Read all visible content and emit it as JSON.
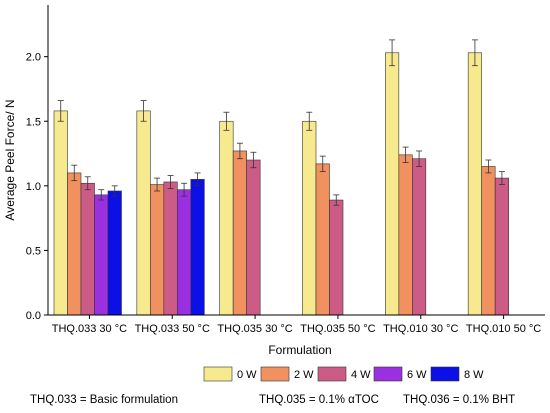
{
  "chart_data": {
    "type": "bar",
    "title": "",
    "xlabel": "Formulation",
    "ylabel": "Average Peel Force/ N",
    "ylim": [
      0,
      2.4
    ],
    "yticks": [
      "0.0",
      "0.5",
      "1.0",
      "1.5",
      "2.0"
    ],
    "ytick_values": [
      0,
      0.5,
      1.0,
      1.5,
      2.0
    ],
    "grid": false,
    "legend_position": "bottom",
    "categories": [
      "THQ.033  30 °C",
      "THQ.033  50 °C",
      "THQ.035  30 °C",
      "THQ.035  50 °C",
      "THQ.010  30 °C",
      "THQ.010  50 °C"
    ],
    "series": [
      {
        "name": "0 W",
        "color": "#f7e98e",
        "values": [
          1.58,
          1.58,
          1.5,
          1.5,
          2.03,
          2.03
        ],
        "errors": [
          0.08,
          0.08,
          0.07,
          0.07,
          0.1,
          0.1
        ]
      },
      {
        "name": "2 W",
        "color": "#f0915f",
        "values": [
          1.1,
          1.01,
          1.27,
          1.17,
          1.24,
          1.15
        ],
        "errors": [
          0.06,
          0.05,
          0.06,
          0.06,
          0.06,
          0.05
        ]
      },
      {
        "name": "4 W",
        "color": "#cc5c86",
        "values": [
          1.02,
          1.03,
          1.2,
          0.89,
          1.21,
          1.06
        ],
        "errors": [
          0.05,
          0.05,
          0.06,
          0.04,
          0.06,
          0.05
        ]
      },
      {
        "name": "6 W",
        "color": "#9b30e0",
        "values": [
          0.93,
          0.97,
          null,
          null,
          null,
          null
        ],
        "errors": [
          0.04,
          0.05,
          null,
          null,
          null,
          null
        ]
      },
      {
        "name": "8 W",
        "color": "#0a10e6",
        "values": [
          0.96,
          1.05,
          null,
          null,
          null,
          null
        ],
        "errors": [
          0.04,
          0.05,
          null,
          null,
          null,
          null
        ]
      }
    ]
  },
  "footnote": {
    "thq033": "THQ.033 = Basic formulation",
    "thq035": "THQ.035 = 0.1% αTOC",
    "thq036": "THQ.036 = 0.1% BHT"
  }
}
